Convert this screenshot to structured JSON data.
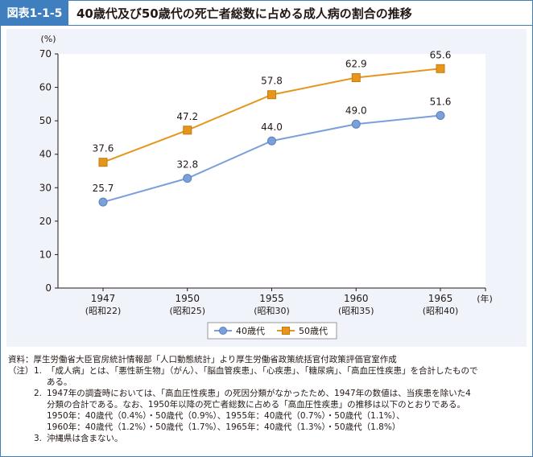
{
  "figure": {
    "label": "図表1-1-5",
    "title": "40歳代及び50歳代の死亡者総数に占める成人病の割合の推移"
  },
  "chart_data": {
    "type": "line",
    "ylabel": "(%)",
    "xunit": "(年)",
    "ylim": [
      0,
      70
    ],
    "yticks": [
      0,
      10,
      20,
      30,
      40,
      50,
      60,
      70
    ],
    "categories": [
      "1947",
      "1950",
      "1955",
      "1960",
      "1965"
    ],
    "category_sublabels": [
      "(昭和22)",
      "(昭和25)",
      "(昭和30)",
      "(昭和35)",
      "(昭和40)"
    ],
    "grid": false,
    "legend_position": "bottom",
    "series": [
      {
        "name": "40歳代",
        "values": [
          25.7,
          32.8,
          44.0,
          49.0,
          51.6
        ],
        "labels": [
          "25.7",
          "32.8",
          "44.0",
          "49.0",
          "51.6"
        ],
        "color": "#7b9fd9",
        "marker": "circle"
      },
      {
        "name": "50歳代",
        "values": [
          37.6,
          47.2,
          57.8,
          62.9,
          65.6
        ],
        "labels": [
          "37.6",
          "47.2",
          "57.8",
          "62.9",
          "65.6"
        ],
        "color": "#e5961c",
        "marker": "square"
      }
    ]
  },
  "notes": {
    "source_head": "資料：",
    "source_text": "厚生労働省大臣官房統計情報部「人口動態統計」より厚生労働省政策統括官付政策評価官室作成",
    "note_head": "（注）",
    "items": [
      {
        "num": "1.",
        "lines": [
          "「成人病」とは、「悪性新生物」（がん）、「脳血管疾患」、「心疾患」、「糖尿病」、「高血圧性疾患」を合計したもので",
          "ある。"
        ]
      },
      {
        "num": "2.",
        "lines": [
          "1947年の調査時においては、「高血圧性疾患」の死因分類がなかったため、1947年の数値は、当疾患を除いた4",
          "分類の合計である。なお、1950年以降の死亡者総数に占める「高血圧性疾患」の推移は以下のとおりである。",
          "1950年：40歳代（0.4%）・50歳代（0.9%）、1955年：40歳代（0.7%）・50歳代（1.1%）、",
          "1960年：40歳代（1.2%）・50歳代（1.7%）、1965年：40歳代（1.3%）・50歳代（1.8%）"
        ]
      },
      {
        "num": "3.",
        "lines": [
          "沖縄県は含まない。"
        ]
      }
    ]
  }
}
